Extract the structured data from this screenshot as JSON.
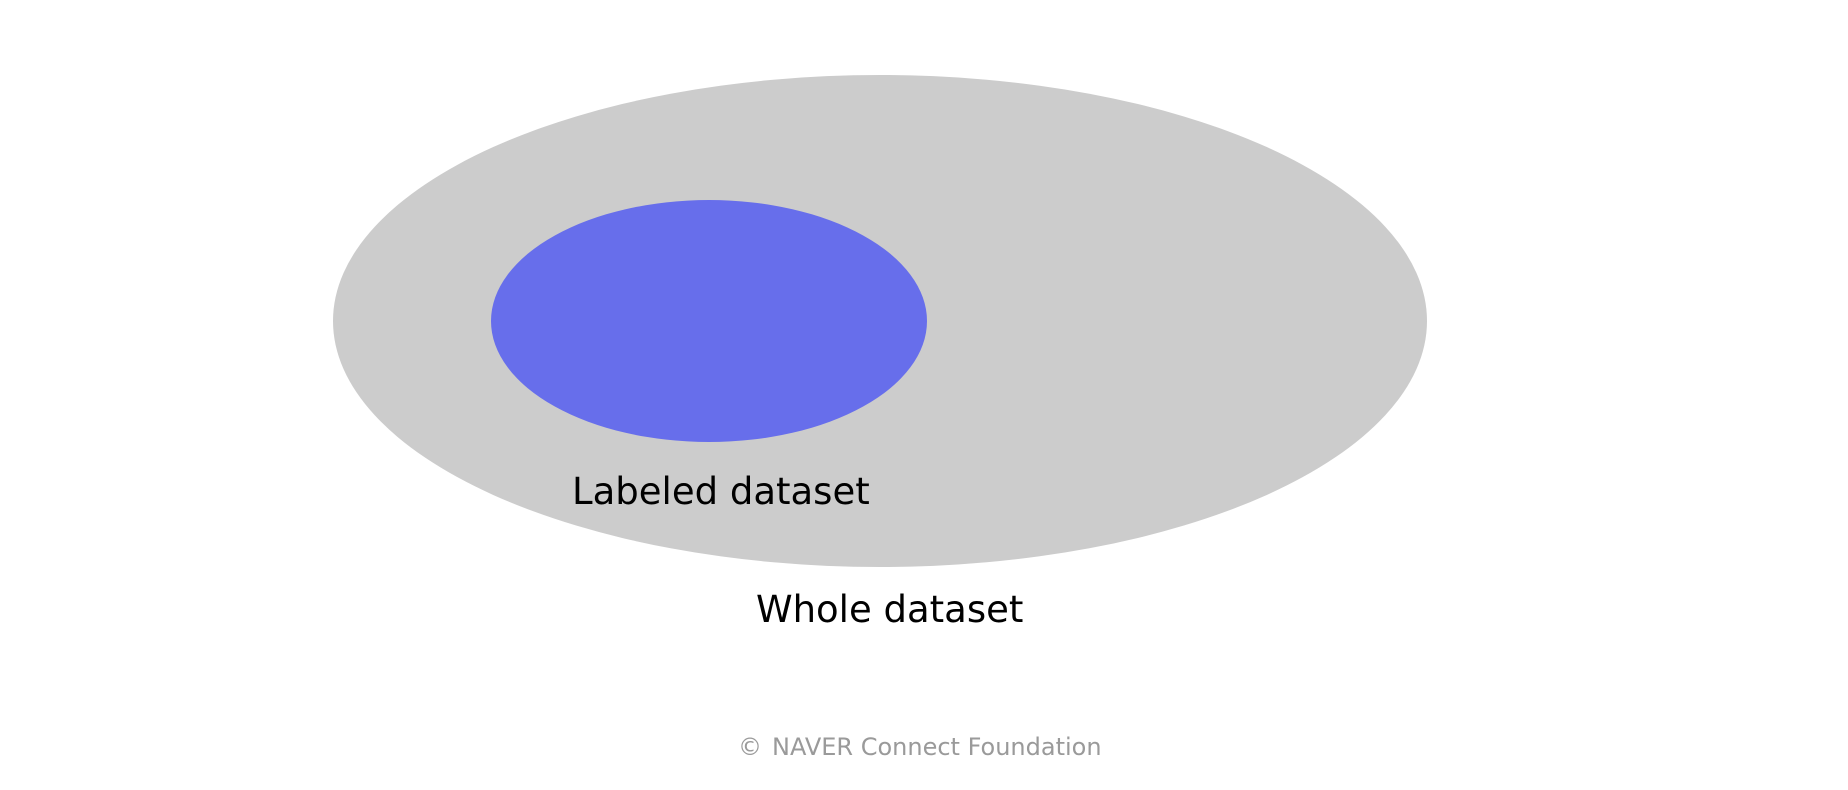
{
  "diagram": {
    "sets": {
      "whole": {
        "label": "Whole dataset",
        "color": "#cccccc"
      },
      "labeled": {
        "label": "Labeled dataset",
        "color": "#676eeb"
      }
    }
  },
  "footer": {
    "icon": "copyright-icon",
    "copyright_symbol": "©",
    "text": "NAVER Connect Foundation",
    "color": "#9a9a9a"
  }
}
